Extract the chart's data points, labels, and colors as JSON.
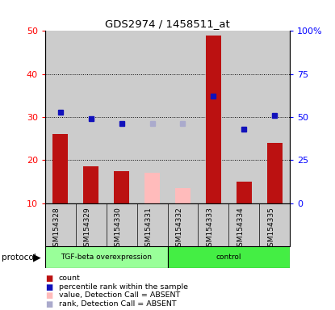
{
  "title": "GDS2974 / 1458511_at",
  "samples": [
    "GSM154328",
    "GSM154329",
    "GSM154330",
    "GSM154331",
    "GSM154332",
    "GSM154333",
    "GSM154334",
    "GSM154335"
  ],
  "count_values": [
    26,
    18.5,
    17.5,
    null,
    null,
    49,
    15,
    24
  ],
  "count_absent": [
    null,
    null,
    null,
    17,
    13.5,
    null,
    null,
    null
  ],
  "rank_values": [
    53,
    49,
    46,
    null,
    null,
    62,
    43,
    51
  ],
  "rank_absent": [
    null,
    null,
    null,
    46,
    46,
    null,
    null,
    null
  ],
  "left_ylim": [
    10,
    50
  ],
  "left_yticks": [
    10,
    20,
    30,
    40,
    50
  ],
  "right_ylim": [
    0,
    100
  ],
  "right_yticks": [
    0,
    25,
    50,
    75,
    100
  ],
  "right_yticklabels": [
    "0",
    "25",
    "50",
    "75",
    "100%"
  ],
  "bar_color_present": "#bb1111",
  "bar_color_absent": "#ffbbbb",
  "dot_color_present": "#1111bb",
  "dot_color_absent": "#aaaacc",
  "group1_label": "TGF-beta overexpression",
  "group2_label": "control",
  "group1_color": "#99ff99",
  "group2_color": "#44ee44",
  "bg_color": "#cccccc",
  "grid_yticks": [
    20,
    30,
    40
  ],
  "bar_width": 0.5
}
